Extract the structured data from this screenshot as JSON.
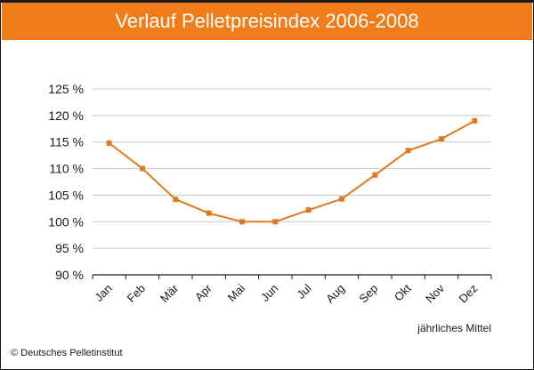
{
  "chart_data": {
    "type": "line",
    "title": "Verlauf Pelletpreisindex 2006-2008",
    "categories": [
      "Jan",
      "Feb",
      "Mär",
      "Apr",
      "Mai",
      "Jun",
      "Jul",
      "Aug",
      "Sep",
      "Okt",
      "Nov",
      "Dez"
    ],
    "series": [
      {
        "name": "jährliches Mittel",
        "values": [
          114.8,
          110.0,
          104.2,
          101.6,
          100.0,
          100.0,
          102.2,
          104.3,
          108.8,
          113.4,
          115.6,
          119.0
        ]
      }
    ],
    "ylim": [
      90,
      125
    ],
    "yticks": [
      90,
      95,
      100,
      105,
      110,
      115,
      120,
      125
    ],
    "ytick_labels": [
      "90 %",
      "95 %",
      "100 %",
      "105 %",
      "110 %",
      "115 %",
      "120 %",
      "125 %"
    ],
    "xlabel": "",
    "ylabel": "",
    "grid": true,
    "note": "jährliches Mittel",
    "source": "© Deutsches Pelletinstitut",
    "colors": {
      "accent": "#f07d1a",
      "line": "#e07a1f",
      "grid": "#c8c8c8",
      "axis": "#1a1a1a"
    }
  }
}
